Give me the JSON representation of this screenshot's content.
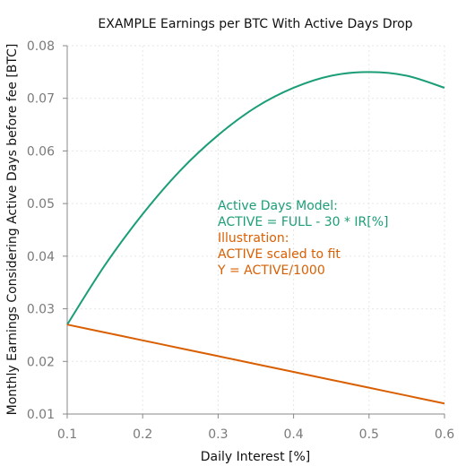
{
  "chart_data": {
    "type": "line",
    "title": "EXAMPLE Earnings per BTC With Active Days Drop",
    "xlabel": "Daily Interest [%]",
    "ylabel": "Monthly Earnings Considering Active Days before fee [BTC]",
    "xlim": [
      0.1,
      0.6
    ],
    "ylim": [
      0.01,
      0.08
    ],
    "xticks": [
      0.1,
      0.2,
      0.3,
      0.4,
      0.5,
      0.6
    ],
    "yticks": [
      0.01,
      0.02,
      0.03,
      0.04,
      0.05,
      0.06,
      0.07,
      0.08
    ],
    "grid": true,
    "series": [
      {
        "color": "#1b9e77",
        "x": [
          0.1,
          0.15,
          0.2,
          0.25,
          0.3,
          0.35,
          0.4,
          0.45,
          0.5,
          0.55,
          0.6
        ],
        "values": [
          0.027,
          0.0383,
          0.048,
          0.0563,
          0.063,
          0.0683,
          0.072,
          0.0743,
          0.075,
          0.0743,
          0.072
        ]
      },
      {
        "color": "#d95f02",
        "x": [
          0.1,
          0.15,
          0.2,
          0.25,
          0.3,
          0.35,
          0.4,
          0.45,
          0.5,
          0.55,
          0.6
        ],
        "values": [
          0.027,
          0.0255,
          0.024,
          0.0225,
          0.021,
          0.0195,
          0.018,
          0.0165,
          0.015,
          0.0135,
          0.012
        ]
      }
    ],
    "annotations": [
      {
        "text": "Active Days Model:",
        "color": "#1b9e77"
      },
      {
        "text": "ACTIVE = FULL - 30 * IR[%]",
        "color": "#1b9e77"
      },
      {
        "text": "Illustration:",
        "color": "#d95f02"
      },
      {
        "text": "ACTIVE scaled to fit",
        "color": "#d95f02"
      },
      {
        "text": "Y = ACTIVE/1000",
        "color": "#d95f02"
      }
    ]
  }
}
